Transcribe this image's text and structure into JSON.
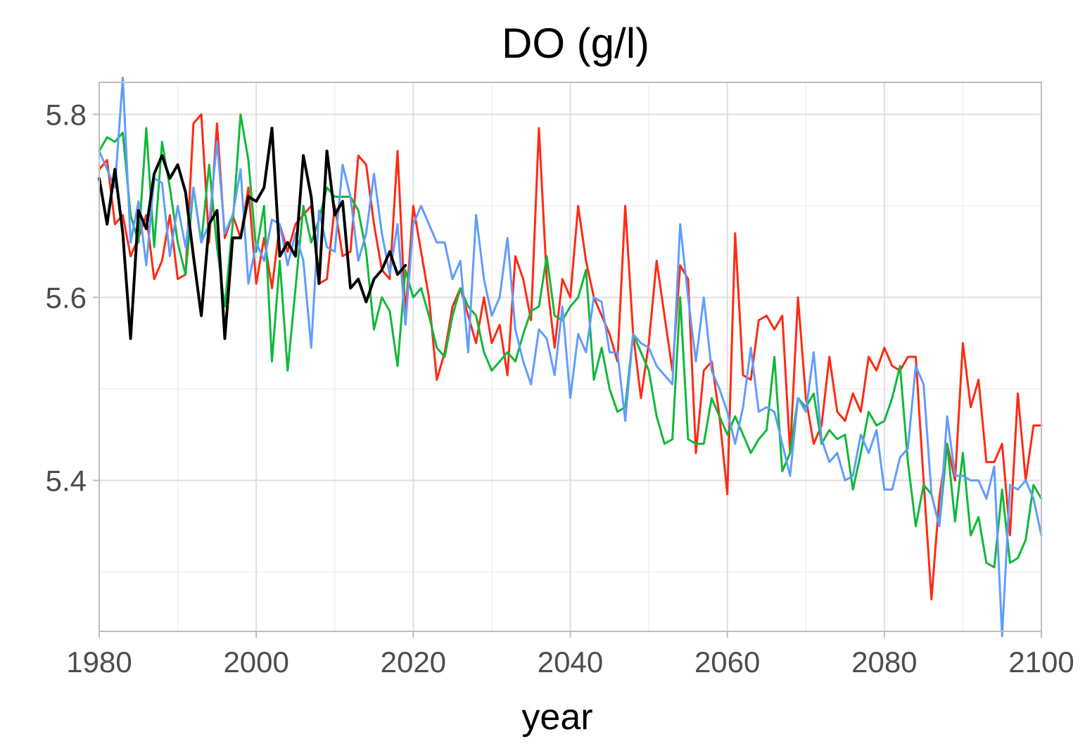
{
  "chart_data": {
    "type": "line",
    "title": "DO (g/l)",
    "xlabel": "year",
    "ylabel": "",
    "xlim": [
      1980,
      2100
    ],
    "ylim": [
      5.235,
      5.835
    ],
    "x_ticks": [
      "1980",
      "2000",
      "2020",
      "2040",
      "2060",
      "2080",
      "2100"
    ],
    "y_ticks": [
      "5.4",
      "5.6",
      "5.8"
    ],
    "grid": true,
    "legend": "none",
    "series": [
      {
        "color": "#ff2a12",
        "x": [
          1980,
          1981,
          1982,
          1983,
          1984,
          1985,
          1986,
          1987,
          1988,
          1989,
          1990,
          1991,
          1992,
          1993,
          1994,
          1995,
          1996,
          1997,
          1998,
          1999,
          2000,
          2001,
          2002,
          2003,
          2004,
          2005,
          2006,
          2007,
          2008,
          2009,
          2010,
          2011,
          2012,
          2013,
          2014,
          2015,
          2016,
          2017,
          2018,
          2019,
          2020,
          2021,
          2022,
          2023,
          2024,
          2025,
          2026,
          2027,
          2028,
          2029,
          2030,
          2031,
          2032,
          2033,
          2034,
          2035,
          2036,
          2037,
          2038,
          2039,
          2040,
          2041,
          2042,
          2043,
          2044,
          2045,
          2046,
          2047,
          2048,
          2049,
          2050,
          2051,
          2052,
          2053,
          2054,
          2055,
          2056,
          2057,
          2058,
          2059,
          2060,
          2061,
          2062,
          2063,
          2064,
          2065,
          2066,
          2067,
          2068,
          2069,
          2070,
          2071,
          2072,
          2073,
          2074,
          2075,
          2076,
          2077,
          2078,
          2079,
          2080,
          2081,
          2082,
          2083,
          2084,
          2085,
          2086,
          2087,
          2088,
          2089,
          2090,
          2091,
          2092,
          2093,
          2094,
          2095,
          2096,
          2097,
          2098,
          2099,
          2100
        ],
        "values": [
          5.74,
          5.75,
          5.68,
          5.69,
          5.645,
          5.665,
          5.69,
          5.62,
          5.64,
          5.69,
          5.62,
          5.625,
          5.79,
          5.8,
          5.66,
          5.79,
          5.665,
          5.69,
          5.665,
          5.72,
          5.615,
          5.665,
          5.61,
          5.68,
          5.65,
          5.68,
          5.69,
          5.7,
          5.615,
          5.62,
          5.7,
          5.645,
          5.65,
          5.755,
          5.745,
          5.68,
          5.63,
          5.62,
          5.76,
          5.58,
          5.7,
          5.65,
          5.6,
          5.51,
          5.54,
          5.59,
          5.61,
          5.58,
          5.55,
          5.6,
          5.55,
          5.57,
          5.515,
          5.645,
          5.62,
          5.575,
          5.785,
          5.62,
          5.545,
          5.62,
          5.6,
          5.7,
          5.64,
          5.6,
          5.58,
          5.56,
          5.53,
          5.7,
          5.56,
          5.49,
          5.55,
          5.64,
          5.58,
          5.52,
          5.635,
          5.62,
          5.43,
          5.52,
          5.53,
          5.47,
          5.385,
          5.67,
          5.515,
          5.51,
          5.575,
          5.58,
          5.565,
          5.58,
          5.43,
          5.6,
          5.49,
          5.44,
          5.46,
          5.535,
          5.475,
          5.465,
          5.495,
          5.475,
          5.535,
          5.52,
          5.545,
          5.525,
          5.52,
          5.535,
          5.535,
          5.4,
          5.27,
          5.38,
          5.44,
          5.4,
          5.55,
          5.48,
          5.51,
          5.42,
          5.42,
          5.44,
          5.34,
          5.495,
          5.4,
          5.46,
          5.46
        ]
      },
      {
        "color": "#10b83a",
        "x": [
          1980,
          1981,
          1982,
          1983,
          1984,
          1985,
          1986,
          1987,
          1988,
          1989,
          1990,
          1991,
          1992,
          1993,
          1994,
          1995,
          1996,
          1997,
          1998,
          1999,
          2000,
          2001,
          2002,
          2003,
          2004,
          2005,
          2006,
          2007,
          2008,
          2009,
          2010,
          2011,
          2012,
          2013,
          2014,
          2015,
          2016,
          2017,
          2018,
          2019,
          2020,
          2021,
          2022,
          2023,
          2024,
          2025,
          2026,
          2027,
          2028,
          2029,
          2030,
          2031,
          2032,
          2033,
          2034,
          2035,
          2036,
          2037,
          2038,
          2039,
          2040,
          2041,
          2042,
          2043,
          2044,
          2045,
          2046,
          2047,
          2048,
          2049,
          2050,
          2051,
          2052,
          2053,
          2054,
          2055,
          2056,
          2057,
          2058,
          2059,
          2060,
          2061,
          2062,
          2063,
          2064,
          2065,
          2066,
          2067,
          2068,
          2069,
          2070,
          2071,
          2072,
          2073,
          2074,
          2075,
          2076,
          2077,
          2078,
          2079,
          2080,
          2081,
          2082,
          2083,
          2084,
          2085,
          2086,
          2087,
          2088,
          2089,
          2090,
          2091,
          2092,
          2093,
          2094,
          2095,
          2096,
          2097,
          2098,
          2099,
          2100
        ],
        "values": [
          5.76,
          5.775,
          5.77,
          5.78,
          5.69,
          5.66,
          5.785,
          5.655,
          5.77,
          5.72,
          5.66,
          5.625,
          5.72,
          5.66,
          5.745,
          5.655,
          5.59,
          5.68,
          5.8,
          5.75,
          5.65,
          5.7,
          5.53,
          5.64,
          5.52,
          5.61,
          5.7,
          5.66,
          5.685,
          5.72,
          5.71,
          5.71,
          5.71,
          5.695,
          5.65,
          5.565,
          5.6,
          5.585,
          5.525,
          5.63,
          5.6,
          5.61,
          5.58,
          5.545,
          5.535,
          5.58,
          5.61,
          5.59,
          5.58,
          5.54,
          5.52,
          5.53,
          5.54,
          5.53,
          5.56,
          5.585,
          5.59,
          5.645,
          5.58,
          5.575,
          5.59,
          5.6,
          5.63,
          5.51,
          5.545,
          5.5,
          5.475,
          5.48,
          5.56,
          5.54,
          5.52,
          5.47,
          5.44,
          5.445,
          5.6,
          5.445,
          5.44,
          5.44,
          5.49,
          5.47,
          5.45,
          5.47,
          5.45,
          5.43,
          5.445,
          5.455,
          5.535,
          5.41,
          5.43,
          5.49,
          5.48,
          5.495,
          5.44,
          5.455,
          5.445,
          5.45,
          5.39,
          5.43,
          5.475,
          5.46,
          5.465,
          5.49,
          5.525,
          5.42,
          5.35,
          5.395,
          5.385,
          5.35,
          5.44,
          5.355,
          5.43,
          5.34,
          5.36,
          5.31,
          5.305,
          5.39,
          5.31,
          5.315,
          5.335,
          5.395,
          5.38
        ]
      },
      {
        "color": "#619cff",
        "x": [
          1980,
          1981,
          1982,
          1983,
          1984,
          1985,
          1986,
          1987,
          1988,
          1989,
          1990,
          1991,
          1992,
          1993,
          1994,
          1995,
          1996,
          1997,
          1998,
          1999,
          2000,
          2001,
          2002,
          2003,
          2004,
          2005,
          2006,
          2007,
          2008,
          2009,
          2010,
          2011,
          2012,
          2013,
          2014,
          2015,
          2016,
          2017,
          2018,
          2019,
          2020,
          2021,
          2022,
          2023,
          2024,
          2025,
          2026,
          2027,
          2028,
          2029,
          2030,
          2031,
          2032,
          2033,
          2034,
          2035,
          2036,
          2037,
          2038,
          2039,
          2040,
          2041,
          2042,
          2043,
          2044,
          2045,
          2046,
          2047,
          2048,
          2049,
          2050,
          2051,
          2052,
          2053,
          2054,
          2055,
          2056,
          2057,
          2058,
          2059,
          2060,
          2061,
          2062,
          2063,
          2064,
          2065,
          2066,
          2067,
          2068,
          2069,
          2070,
          2071,
          2072,
          2073,
          2074,
          2075,
          2076,
          2077,
          2078,
          2079,
          2080,
          2081,
          2082,
          2083,
          2084,
          2085,
          2086,
          2087,
          2088,
          2089,
          2090,
          2091,
          2092,
          2093,
          2094,
          2095,
          2096,
          2097,
          2098,
          2099,
          2100
        ],
        "values": [
          5.76,
          5.74,
          5.72,
          5.84,
          5.66,
          5.705,
          5.635,
          5.73,
          5.725,
          5.645,
          5.7,
          5.655,
          5.72,
          5.66,
          5.68,
          5.77,
          5.67,
          5.69,
          5.74,
          5.615,
          5.66,
          5.64,
          5.685,
          5.68,
          5.635,
          5.67,
          5.64,
          5.545,
          5.695,
          5.655,
          5.65,
          5.745,
          5.71,
          5.64,
          5.67,
          5.735,
          5.67,
          5.625,
          5.68,
          5.57,
          5.68,
          5.7,
          5.68,
          5.66,
          5.66,
          5.62,
          5.64,
          5.54,
          5.69,
          5.62,
          5.58,
          5.6,
          5.665,
          5.565,
          5.53,
          5.505,
          5.565,
          5.555,
          5.515,
          5.59,
          5.49,
          5.56,
          5.54,
          5.6,
          5.595,
          5.54,
          5.54,
          5.465,
          5.56,
          5.55,
          5.545,
          5.525,
          5.515,
          5.505,
          5.68,
          5.6,
          5.53,
          5.6,
          5.52,
          5.5,
          5.475,
          5.44,
          5.48,
          5.545,
          5.475,
          5.48,
          5.475,
          5.44,
          5.405,
          5.49,
          5.475,
          5.54,
          5.445,
          5.42,
          5.43,
          5.4,
          5.405,
          5.45,
          5.43,
          5.455,
          5.39,
          5.39,
          5.425,
          5.435,
          5.525,
          5.505,
          5.385,
          5.35,
          5.47,
          5.405,
          5.405,
          5.4,
          5.4,
          5.38,
          5.415,
          5.23,
          5.395,
          5.39,
          5.4,
          5.38,
          5.34
        ]
      },
      {
        "color": "#000000",
        "x": [
          1980,
          1981,
          1982,
          1983,
          1984,
          1985,
          1986,
          1987,
          1988,
          1989,
          1990,
          1991,
          1992,
          1993,
          1994,
          1995,
          1996,
          1997,
          1998,
          1999,
          2000,
          2001,
          2002,
          2003,
          2004,
          2005,
          2006,
          2007,
          2008,
          2009,
          2010,
          2011,
          2012,
          2013,
          2014,
          2015,
          2016,
          2017,
          2018,
          2019
        ],
        "values": [
          5.73,
          5.68,
          5.74,
          5.67,
          5.555,
          5.695,
          5.675,
          5.735,
          5.755,
          5.73,
          5.745,
          5.715,
          5.645,
          5.58,
          5.68,
          5.695,
          5.555,
          5.665,
          5.665,
          5.71,
          5.705,
          5.72,
          5.785,
          5.645,
          5.66,
          5.645,
          5.755,
          5.71,
          5.615,
          5.76,
          5.69,
          5.705,
          5.61,
          5.62,
          5.595,
          5.62,
          5.63,
          5.65,
          5.625,
          5.635
        ]
      }
    ]
  }
}
